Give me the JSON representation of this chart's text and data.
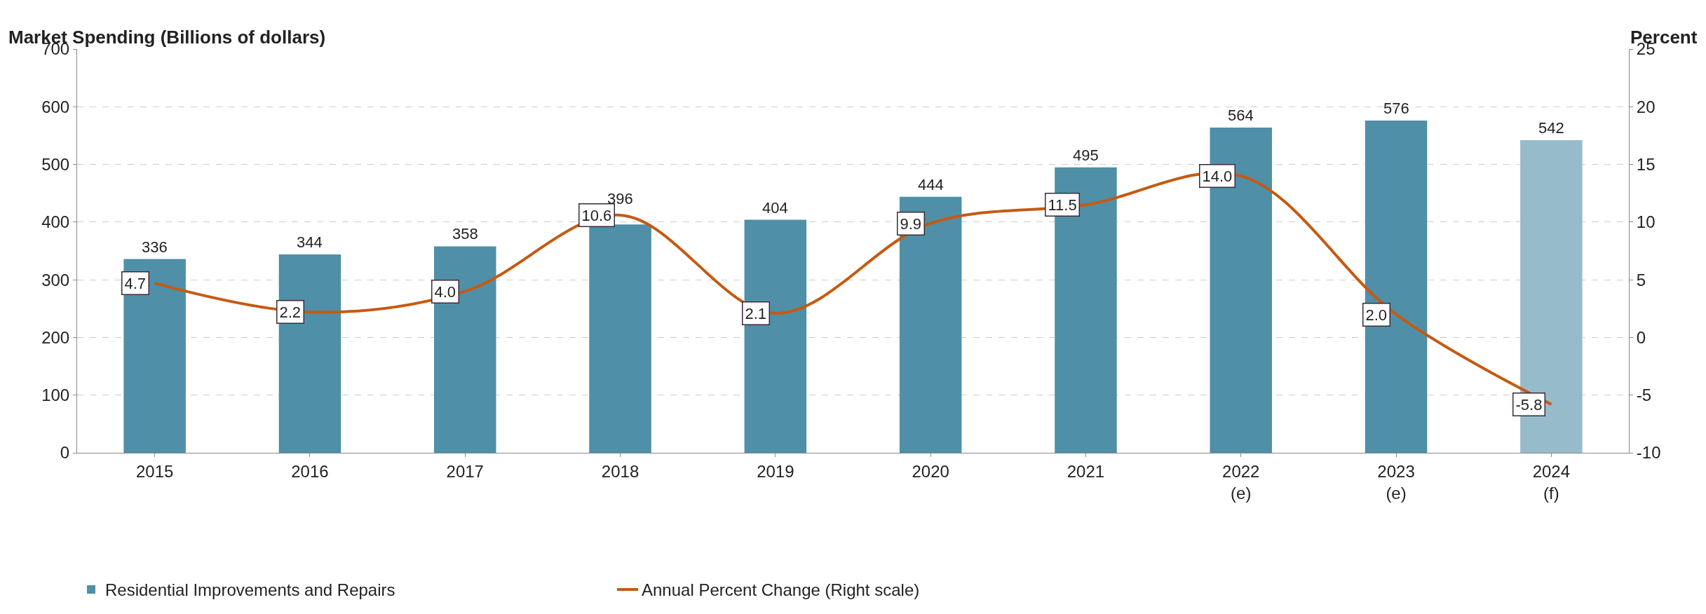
{
  "chart_data": {
    "type": "bar",
    "ylabel": "Market Spending (Billions of dollars)",
    "y2label": "Percent",
    "categories": [
      "2015",
      "2016",
      "2017",
      "2018",
      "2019",
      "2020",
      "2021",
      "2022\n(e)",
      "2023\n(e)",
      "2024\n(f)"
    ],
    "series": [
      {
        "name": "Residential Improvements and Repairs",
        "color": "#4f8fa8",
        "colors": [
          "#4f8fa8",
          "#4f8fa8",
          "#4f8fa8",
          "#4f8fa8",
          "#4f8fa8",
          "#4f8fa8",
          "#4f8fa8",
          "#4f8fa8",
          "#4f8fa8",
          "#96bccb"
        ],
        "values": [
          336,
          344,
          358,
          396,
          404,
          444,
          495,
          564,
          576,
          542
        ],
        "value_labels": [
          "336",
          "344",
          "358",
          "396",
          "404",
          "444",
          "495",
          "564",
          "576",
          "542"
        ]
      },
      {
        "name": "Annual Percent Change (Right scale)",
        "type": "line",
        "axis": "y2",
        "color": "#c55a11",
        "values": [
          4.7,
          2.2,
          4.0,
          10.6,
          2.1,
          9.9,
          11.5,
          14.0,
          2.0,
          -5.8
        ],
        "value_labels": [
          "4.7",
          "2.2",
          "4.0",
          "10.6",
          "2.1",
          "9.9",
          "11.5",
          "14.0",
          "2.0",
          "-5.8"
        ]
      }
    ],
    "ylim": [
      0,
      700
    ],
    "yticks": [
      0,
      100,
      200,
      300,
      400,
      500,
      600,
      700
    ],
    "y2lim": [
      -10,
      25
    ],
    "y2ticks": [
      -10,
      -5,
      0,
      5,
      10,
      15,
      20,
      25
    ],
    "grid": "y",
    "legend": "bottom left",
    "line_style": "solid"
  }
}
